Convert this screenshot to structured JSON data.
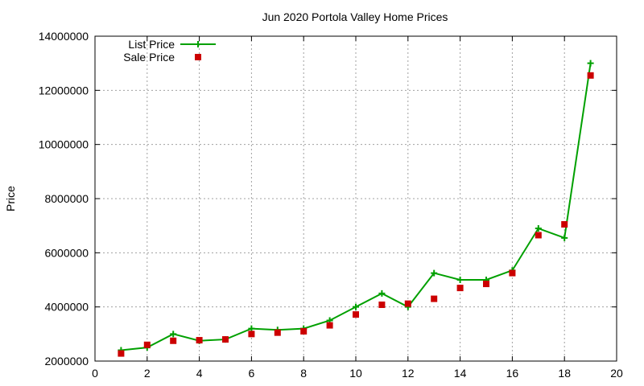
{
  "chart_data": {
    "type": "line",
    "title": "Jun 2020 Portola Valley Home Prices",
    "xlabel": "",
    "ylabel": "Price",
    "xlim": [
      0,
      20
    ],
    "ylim": [
      2000000,
      14000000
    ],
    "x_ticks": [
      "0",
      "2",
      "4",
      "6",
      "8",
      "10",
      "12",
      "14",
      "16",
      "18",
      "20"
    ],
    "y_ticks": [
      "2000000",
      "4000000",
      "6000000",
      "8000000",
      "10000000",
      "12000000",
      "14000000"
    ],
    "grid": true,
    "legend_position": "top-left",
    "x": [
      1,
      2,
      3,
      4,
      5,
      6,
      7,
      8,
      9,
      10,
      11,
      12,
      13,
      14,
      15,
      16,
      17,
      18,
      19
    ],
    "series": [
      {
        "name": "List Price",
        "style": "line-with-plus-markers",
        "color": "#00a000",
        "values": [
          2400000,
          2500000,
          3000000,
          2750000,
          2800000,
          3200000,
          3150000,
          3200000,
          3500000,
          4000000,
          4500000,
          4000000,
          5250000,
          5000000,
          5000000,
          5350000,
          6900000,
          6550000,
          13000000
        ]
      },
      {
        "name": "Sale Price",
        "style": "square-markers",
        "color": "#cc0000",
        "values": [
          2280000,
          2600000,
          2750000,
          2770000,
          2800000,
          3000000,
          3050000,
          3100000,
          3320000,
          3720000,
          4080000,
          4120000,
          4300000,
          4700000,
          4850000,
          5250000,
          6650000,
          7050000,
          12550000
        ]
      }
    ]
  }
}
